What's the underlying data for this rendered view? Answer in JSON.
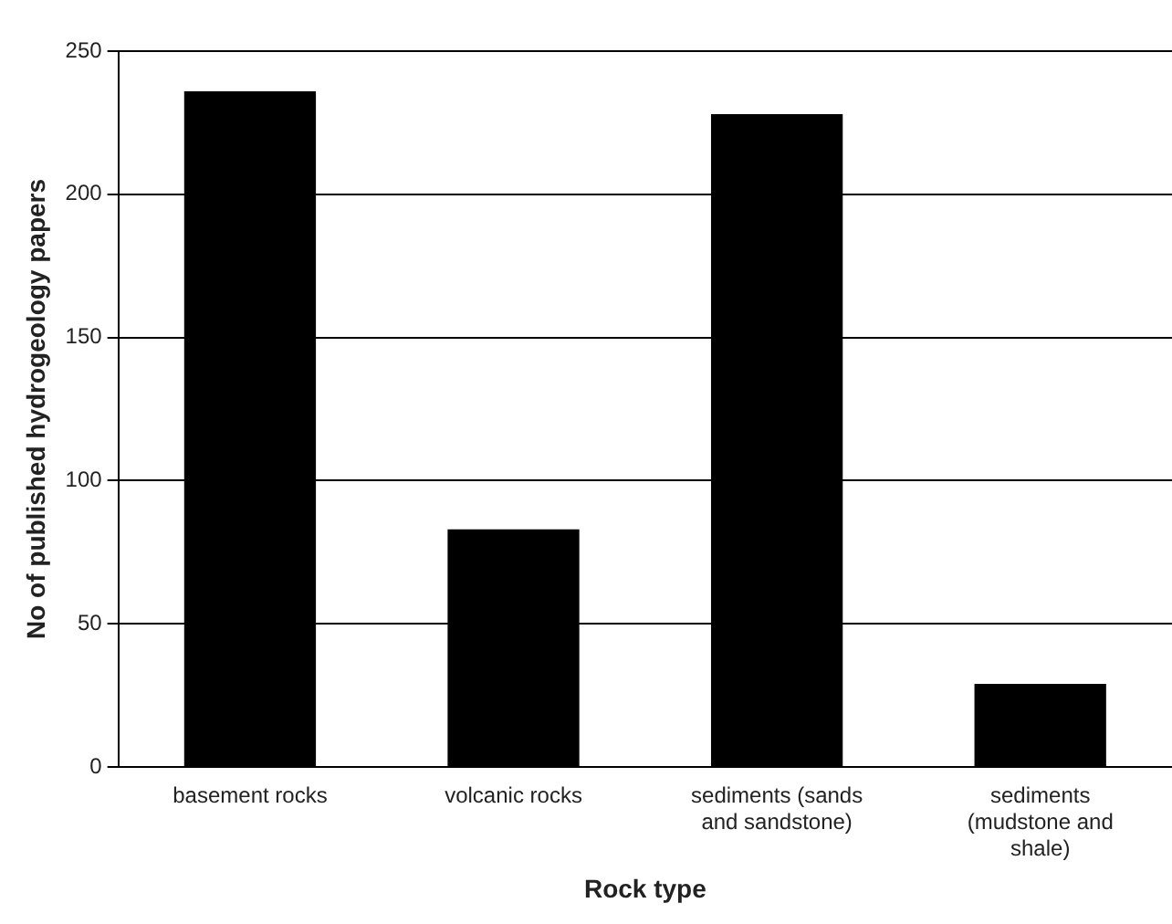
{
  "chart_data": {
    "type": "bar",
    "xlabel": "Rock type",
    "ylabel": "No of published hydrogeology papers",
    "categories": [
      "basement rocks",
      "volcanic rocks",
      "sediments (sands and sandstone)",
      "sediments (mudstone and shale)"
    ],
    "values": [
      236,
      83,
      228,
      29
    ],
    "color": "#000000",
    "ylim": [
      0,
      250
    ],
    "yticks": [
      0,
      50,
      100,
      150,
      200,
      250
    ],
    "grid": "y",
    "legend": false
  }
}
